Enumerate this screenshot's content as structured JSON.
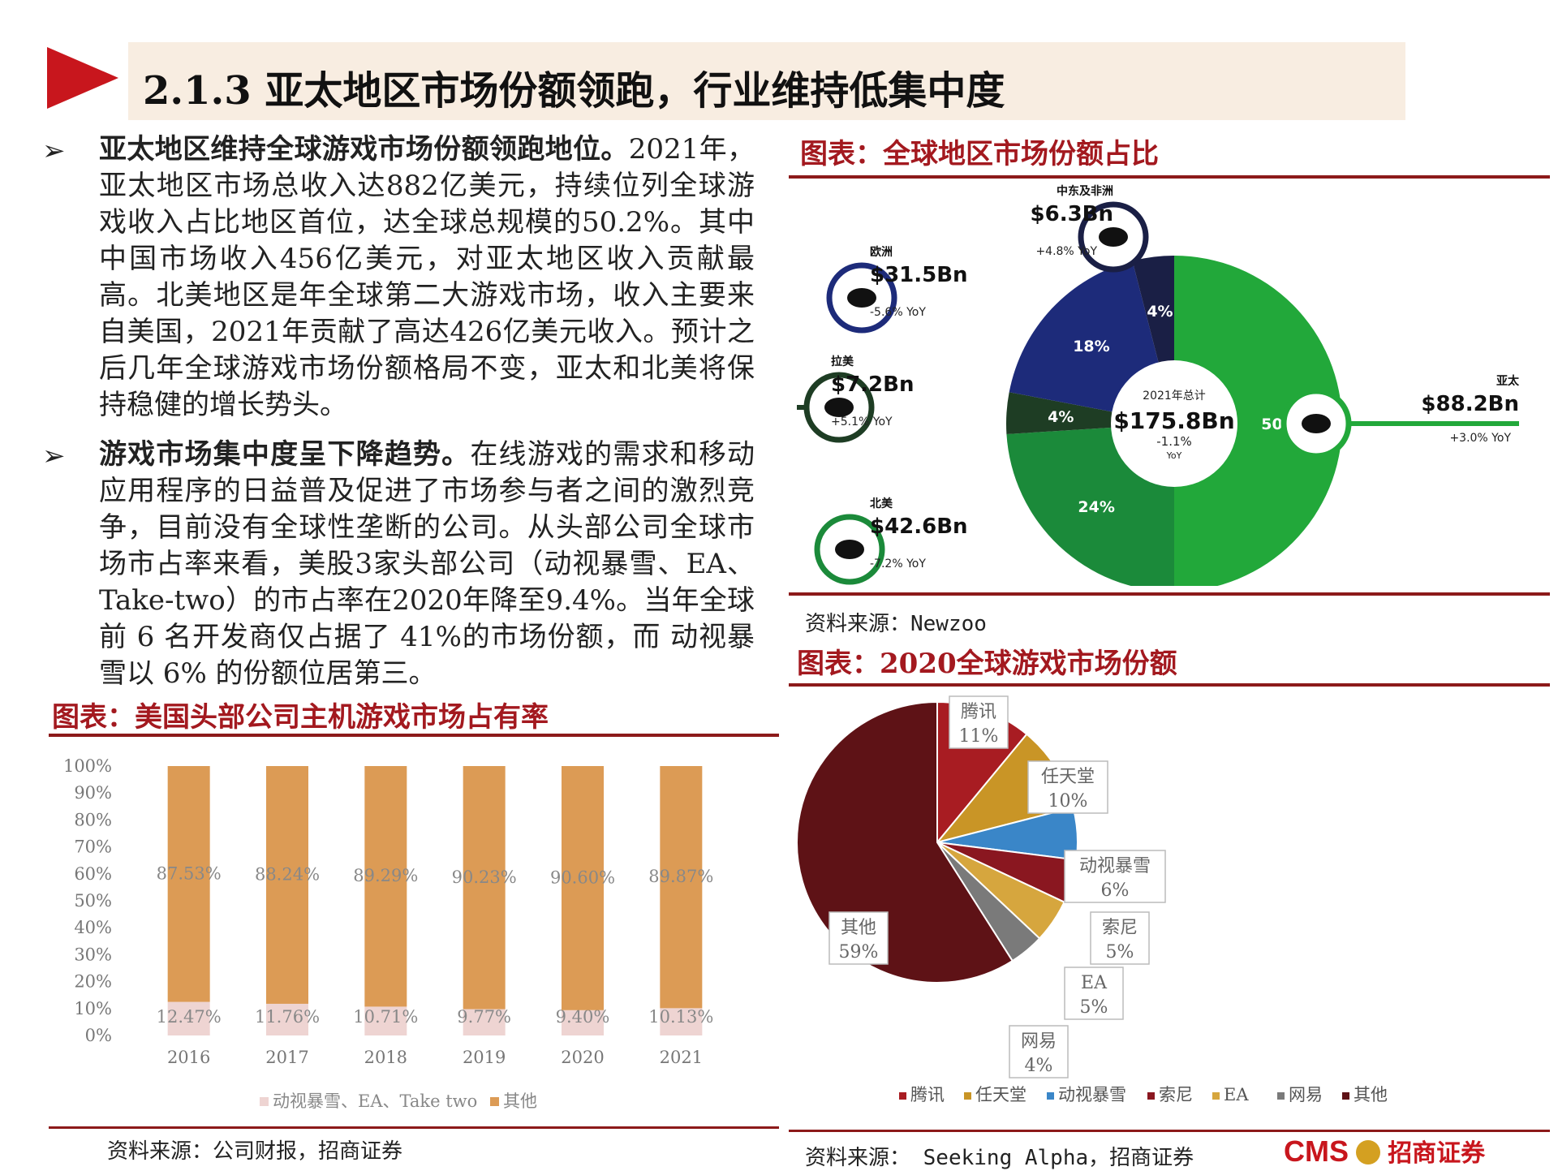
{
  "header": {
    "title": "2.1.3 亚太地区市场份额领跑，行业维持低集中度"
  },
  "bullets": [
    {
      "lead": "亚太地区维持全球游戏市场份额领跑地位。",
      "body": "2021年，亚太地区市场总收入达882亿美元，持续位列全球游戏收入占比地区首位，达全球总规模的50.2%。其中中国市场收入456亿美元，对亚太地区收入贡献最高。北美地区是年全球第二大游戏市场，收入主要来自美国，2021年贡献了高达426亿美元收入。预计之后几年全球游戏市场份额格局不变，亚太和北美将保持稳健的增长势头。"
    },
    {
      "lead": "游戏市场集中度呈下降趋势。",
      "body": "在线游戏的需求和移动应用程序的日益普及促进了市场参与者之间的激烈竞争，目前没有全球性垄断的公司。从头部公司全球市场市占率来看，美股3家头部公司（动视暴雪、EA、Take-two）的市占率在2020年降至9.4%。当年全球前 6 名开发商仅占据了 41%的市场份额，而 动视暴雪以 6% 的份额位居第三。"
    }
  ],
  "bullet_symbol": "➢",
  "region_chart": {
    "section_title": "图表：全球地区市场份额占比",
    "source": "资料来源：Newzoo",
    "center_label": "2021年总计",
    "center_value": "$175.8Bn",
    "center_yoy": "-1.1%",
    "center_yoy_unit": "YoY"
  },
  "company_chart": {
    "section_title": "图表：2020全球游戏市场份额",
    "source": "资料来源： Seeking Alpha，招商证券"
  },
  "bar_chart": {
    "section_title": "图表：美国头部公司主机游戏市场占有率",
    "source": "资料来源：公司财报，招商证券"
  },
  "logo": {
    "text": "CMS",
    "cn": "招商证券"
  },
  "colors": {
    "accent_red": "#a3191f",
    "header_bg": "#f8ede1",
    "green_dark": "#1b8a3a",
    "green_light": "#22a83a",
    "navy": "#1d2b7a",
    "dark_green": "#1e3d24",
    "bar_orange": "#dc9b55",
    "bar_pink": "#eed4d2"
  },
  "chart_data": [
    {
      "type": "pie",
      "slices": [
        {
          "label": "亚太",
          "value_text": "$88.2Bn",
          "yoy": "+3.0% YoY",
          "percent": 50,
          "percent_text": "50%",
          "color": "#22a83a"
        },
        {
          "label": "北美",
          "value_text": "$42.6Bn",
          "yoy": "-7.2% YoY",
          "percent": 24,
          "percent_text": "24%",
          "color": "#1b8a3a"
        },
        {
          "label": "拉美",
          "value_text": "$7.2Bn",
          "yoy": "+5.1% YoY",
          "percent": 4,
          "percent_text": "4%",
          "color": "#1e3d24"
        },
        {
          "label": "欧洲",
          "value_text": "$31.5Bn",
          "yoy": "-5.6% YoY",
          "percent": 18,
          "percent_text": "18%",
          "color": "#1d2b7a"
        },
        {
          "label": "中东及非洲",
          "value_text": "$6.3Bn",
          "yoy": "+4.8% YoY",
          "percent": 4,
          "percent_text": "4%",
          "color": "#1a1f45"
        }
      ]
    },
    {
      "type": "pie",
      "slices": [
        {
          "label": "腾讯",
          "percent": 11,
          "text": "11%",
          "color": "#a81c22"
        },
        {
          "label": "任天堂",
          "percent": 10,
          "text": "10%",
          "color": "#c99526"
        },
        {
          "label": "动视暴雪",
          "percent": 6,
          "text": "6%",
          "color": "#3a86c8"
        },
        {
          "label": "索尼",
          "percent": 5,
          "text": "5%",
          "color": "#8a1720"
        },
        {
          "label": "EA",
          "percent": 5,
          "text": "5%",
          "color": "#d6a63e"
        },
        {
          "label": "网易",
          "percent": 4,
          "text": "4%",
          "color": "#7a7a7a"
        },
        {
          "label": "其他",
          "percent": 59,
          "text": "59%",
          "color": "#5e1216"
        }
      ]
    },
    {
      "type": "bar",
      "stacked": true,
      "categories": [
        "2016",
        "2017",
        "2018",
        "2019",
        "2020",
        "2021"
      ],
      "ylim": [
        0,
        100
      ],
      "yticks": [
        "0%",
        "10%",
        "20%",
        "30%",
        "40%",
        "50%",
        "60%",
        "70%",
        "80%",
        "90%",
        "100%"
      ],
      "series": [
        {
          "name": "动视暴雪、EA、Take two",
          "values": [
            12.47,
            11.76,
            10.71,
            9.77,
            9.4,
            10.13
          ],
          "labels": [
            "12.47%",
            "11.76%",
            "10.71%",
            "9.77%",
            "9.40%",
            "10.13%"
          ],
          "color": "#eed4d2"
        },
        {
          "name": "其他",
          "values": [
            87.53,
            88.24,
            89.29,
            90.23,
            90.6,
            89.87
          ],
          "labels": [
            "87.53%",
            "88.24%",
            "89.29%",
            "90.23%",
            "90.60%",
            "89.87%"
          ],
          "color": "#dc9b55"
        }
      ]
    }
  ]
}
